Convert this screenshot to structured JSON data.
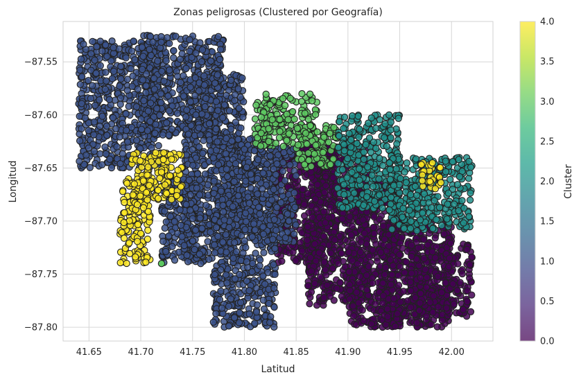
{
  "chart_data": {
    "type": "scatter",
    "title": "Zonas peligrosas (Clustered por Geografía)",
    "xlabel": "Latitud",
    "ylabel": "Longitud",
    "xlim": [
      41.625,
      42.04
    ],
    "ylim": [
      -87.813,
      -87.512
    ],
    "xticks": [
      41.65,
      41.7,
      41.75,
      41.8,
      41.85,
      41.9,
      41.95,
      42.0
    ],
    "xtick_labels": [
      "41.65",
      "41.70",
      "41.75",
      "41.80",
      "41.85",
      "41.90",
      "41.95",
      "42.00"
    ],
    "yticks": [
      -87.55,
      -87.6,
      -87.65,
      -87.7,
      -87.75,
      -87.8
    ],
    "ytick_labels": [
      "−87.55",
      "−87.60",
      "−87.65",
      "−87.70",
      "−87.75",
      "−87.80"
    ],
    "grid": true,
    "colorbar": {
      "label": "Cluster",
      "range": [
        0,
        4
      ],
      "ticks": [
        0.0,
        0.5,
        1.0,
        1.5,
        2.0,
        2.5,
        3.0,
        3.5,
        4.0
      ],
      "tick_labels": [
        "0.0",
        "0.5",
        "1.0",
        "1.5",
        "2.0",
        "2.5",
        "3.0",
        "3.5",
        "4.0"
      ],
      "colormap": "viridis"
    },
    "clusters": [
      {
        "cluster": 0,
        "color": "#440154",
        "regions": [
          {
            "x": [
              41.83,
              41.89
            ],
            "y": [
              -87.74,
              -87.63
            ]
          },
          {
            "x": [
              41.86,
              41.92
            ],
            "y": [
              -87.78,
              -87.63
            ]
          },
          {
            "x": [
              41.9,
              41.95
            ],
            "y": [
              -87.8,
              -87.66
            ]
          },
          {
            "x": [
              41.93,
              42.0
            ],
            "y": [
              -87.8,
              -87.7
            ]
          },
          {
            "x": [
              41.96,
              42.02
            ],
            "y": [
              -87.79,
              -87.72
            ]
          }
        ]
      },
      {
        "cluster": 1,
        "color": "#3b528b",
        "regions": [
          {
            "x": [
              41.64,
              41.72
            ],
            "y": [
              -87.65,
              -87.53
            ]
          },
          {
            "x": [
              41.7,
              41.78
            ],
            "y": [
              -87.62,
              -87.525
            ]
          },
          {
            "x": [
              41.74,
              41.8
            ],
            "y": [
              -87.74,
              -87.56
            ]
          },
          {
            "x": [
              41.77,
              41.83
            ],
            "y": [
              -87.8,
              -87.62
            ]
          },
          {
            "x": [
              41.8,
              41.85
            ],
            "y": [
              -87.72,
              -87.63
            ]
          },
          {
            "x": [
              41.72,
              41.76
            ],
            "y": [
              -87.74,
              -87.66
            ]
          }
        ]
      },
      {
        "cluster": 3,
        "color": "#5ec962",
        "regions": [
          {
            "x": [
              41.81,
              41.87
            ],
            "y": [
              -87.63,
              -87.58
            ]
          },
          {
            "x": [
              41.85,
              41.89
            ],
            "y": [
              -87.65,
              -87.61
            ]
          }
        ],
        "points": [
          {
            "x": 41.72,
            "y": -87.74
          }
        ]
      },
      {
        "cluster": 2,
        "color": "#21918c",
        "regions": [
          {
            "x": [
              41.89,
              41.95
            ],
            "y": [
              -87.69,
              -87.6
            ]
          },
          {
            "x": [
              41.94,
              42.02
            ],
            "y": [
              -87.71,
              -87.64
            ]
          }
        ]
      },
      {
        "cluster": 4,
        "color": "#fde725",
        "regions": [
          {
            "x": [
              41.69,
              41.74
            ],
            "y": [
              -87.68,
              -87.635
            ]
          },
          {
            "x": [
              41.68,
              41.71
            ],
            "y": [
              -87.74,
              -87.66
            ]
          },
          {
            "x": [
              41.97,
              41.99
            ],
            "y": [
              -87.67,
              -87.645
            ]
          }
        ]
      }
    ]
  }
}
